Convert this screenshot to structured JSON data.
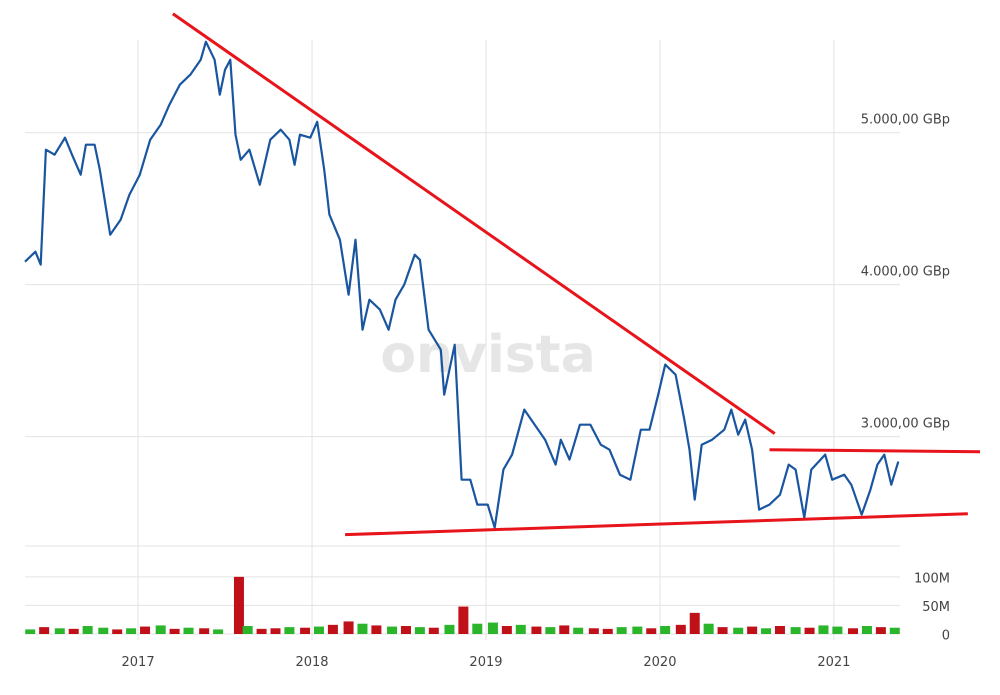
{
  "chart_data": [
    {
      "type": "line",
      "watermark": "onvista",
      "x": [
        2016.35,
        2016.41,
        2016.44,
        2016.47,
        2016.52,
        2016.58,
        2016.62,
        2016.67,
        2016.7,
        2016.75,
        2016.78,
        2016.84,
        2016.9,
        2016.95,
        2017.01,
        2017.07,
        2017.13,
        2017.18,
        2017.24,
        2017.3,
        2017.36,
        2017.39,
        2017.44,
        2017.47,
        2017.5,
        2017.53,
        2017.56,
        2017.59,
        2017.64,
        2017.7,
        2017.76,
        2017.82,
        2017.87,
        2017.9,
        2017.93,
        2017.99,
        2018.03,
        2018.07,
        2018.1,
        2018.16,
        2018.21,
        2018.25,
        2018.29,
        2018.33,
        2018.39,
        2018.44,
        2018.48,
        2018.53,
        2018.59,
        2018.62,
        2018.67,
        2018.74,
        2018.76,
        2018.82,
        2018.86,
        2018.91,
        2018.95,
        2019.01,
        2019.05,
        2019.1,
        2019.15,
        2019.22,
        2019.28,
        2019.34,
        2019.4,
        2019.43,
        2019.48,
        2019.54,
        2019.6,
        2019.66,
        2019.71,
        2019.77,
        2019.83,
        2019.89,
        2019.94,
        2019.99,
        2020.03,
        2020.09,
        2020.14,
        2020.17,
        2020.2,
        2020.24,
        2020.3,
        2020.37,
        2020.41,
        2020.45,
        2020.49,
        2020.53,
        2020.57,
        2020.63,
        2020.69,
        2020.74,
        2020.78,
        2020.83,
        2020.87,
        2020.95,
        2020.99,
        2021.06,
        2021.1,
        2021.16,
        2021.21,
        2021.25,
        2021.29,
        2021.33,
        2021.37
      ],
      "series": [
        {
          "color": "#1a56a0",
          "values": [
            4151,
            4217,
            4132,
            4888,
            4855,
            4967,
            4855,
            4724,
            4921,
            4921,
            4757,
            4329,
            4428,
            4592,
            4724,
            4954,
            5053,
            5184,
            5316,
            5382,
            5480,
            5599,
            5480,
            5250,
            5414,
            5480,
            4987,
            4822,
            4888,
            4658,
            4954,
            5020,
            4954,
            4789,
            4987,
            4967,
            5072,
            4757,
            4461,
            4296,
            3934,
            4296,
            3704,
            3901,
            3836,
            3704,
            3901,
            4000,
            4197,
            4164,
            3704,
            3572,
            3276,
            3605,
            2717,
            2717,
            2553,
            2553,
            2401,
            2783,
            2882,
            3178,
            3079,
            2980,
            2816,
            2980,
            2849,
            3079,
            3079,
            2947,
            2914,
            2750,
            2717,
            3046,
            3046,
            3276,
            3474,
            3408,
            3112,
            2914,
            2586,
            2947,
            2980,
            3046,
            3178,
            3013,
            3112,
            2914,
            2520,
            2553,
            2618,
            2816,
            2783,
            2467,
            2783,
            2882,
            2717,
            2750,
            2684,
            2487,
            2651,
            2816,
            2882,
            2684,
            2836
          ]
        }
      ],
      "lines": [
        {
          "color": "#e8141b",
          "x": [
            2017.2,
            2020.66
          ],
          "y": [
            5783,
            3020
          ]
        },
        {
          "color": "#e8141b",
          "x": [
            2020.63,
            2021.84
          ],
          "y": [
            2914,
            2901
          ]
        },
        {
          "color": "#e8141b",
          "x": [
            2018.19,
            2021.77
          ],
          "y": [
            2355,
            2493
          ]
        }
      ],
      "xlim": [
        2016.35,
        2021.38
      ],
      "xticks": [
        2017,
        2018,
        2019,
        2020,
        2021
      ],
      "ylim": [
        2320,
        5610
      ],
      "yticks": [
        {
          "value": 3000,
          "label": "3.000,00 GBp"
        },
        {
          "value": 4000,
          "label": "4.000,00 GBp"
        },
        {
          "value": 5000,
          "label": "5.000,00 GBp"
        }
      ],
      "grid": true
    },
    {
      "type": "bar",
      "x": [
        2016.38,
        2016.46,
        2016.55,
        2016.63,
        2016.71,
        2016.8,
        2016.88,
        2016.96,
        2017.04,
        2017.13,
        2017.21,
        2017.29,
        2017.38,
        2017.46,
        2017.58,
        2017.63,
        2017.71,
        2017.79,
        2017.87,
        2017.96,
        2018.04,
        2018.12,
        2018.21,
        2018.29,
        2018.37,
        2018.46,
        2018.54,
        2018.62,
        2018.7,
        2018.79,
        2018.87,
        2018.95,
        2019.04,
        2019.12,
        2019.2,
        2019.29,
        2019.37,
        2019.45,
        2019.53,
        2019.62,
        2019.7,
        2019.78,
        2019.87,
        2019.95,
        2020.03,
        2020.12,
        2020.2,
        2020.28,
        2020.36,
        2020.45,
        2020.53,
        2020.61,
        2020.69,
        2020.78,
        2020.86,
        2020.94,
        2021.02,
        2021.11,
        2021.19,
        2021.27,
        2021.35
      ],
      "values": [
        8000000,
        12000000,
        10000000,
        9000000,
        14000000,
        11000000,
        8000000,
        10000000,
        13000000,
        15000000,
        9000000,
        11000000,
        10000000,
        8000000,
        100000000,
        14000000,
        9000000,
        10000000,
        12000000,
        11000000,
        13000000,
        16000000,
        22000000,
        18000000,
        15000000,
        13000000,
        14000000,
        12000000,
        11000000,
        16000000,
        48000000,
        18000000,
        20000000,
        14000000,
        16000000,
        13000000,
        12000000,
        15000000,
        11000000,
        10000000,
        9000000,
        12000000,
        13000000,
        10000000,
        14000000,
        16000000,
        37000000,
        18000000,
        12000000,
        11000000,
        13000000,
        10000000,
        14000000,
        12000000,
        11000000,
        15000000,
        13000000,
        10000000,
        14000000,
        12000000,
        11000000
      ],
      "colors": [
        "#2bb52b",
        "#c0101a",
        "#2bb52b",
        "#c0101a",
        "#2bb52b",
        "#2bb52b",
        "#c0101a",
        "#2bb52b",
        "#c0101a",
        "#2bb52b",
        "#c0101a",
        "#2bb52b",
        "#c0101a",
        "#2bb52b",
        "#c0101a",
        "#2bb52b",
        "#c0101a",
        "#c0101a",
        "#2bb52b",
        "#c0101a",
        "#2bb52b",
        "#c0101a",
        "#c0101a",
        "#2bb52b",
        "#c0101a",
        "#2bb52b",
        "#c0101a",
        "#2bb52b",
        "#c0101a",
        "#2bb52b",
        "#c0101a",
        "#2bb52b",
        "#2bb52b",
        "#c0101a",
        "#2bb52b",
        "#c0101a",
        "#2bb52b",
        "#c0101a",
        "#2bb52b",
        "#c0101a",
        "#c0101a",
        "#2bb52b",
        "#2bb52b",
        "#c0101a",
        "#2bb52b",
        "#c0101a",
        "#c0101a",
        "#2bb52b",
        "#c0101a",
        "#2bb52b",
        "#c0101a",
        "#2bb52b",
        "#c0101a",
        "#2bb52b",
        "#c0101a",
        "#2bb52b",
        "#2bb52b",
        "#c0101a",
        "#2bb52b",
        "#c0101a",
        "#2bb52b"
      ],
      "xlim": [
        2016.35,
        2021.38
      ],
      "ylim": [
        0,
        154000000
      ],
      "yticks": [
        0,
        {
          "value": 50000000,
          "label": "50M"
        },
        {
          "value": 100000000,
          "label": "100M"
        }
      ]
    }
  ]
}
